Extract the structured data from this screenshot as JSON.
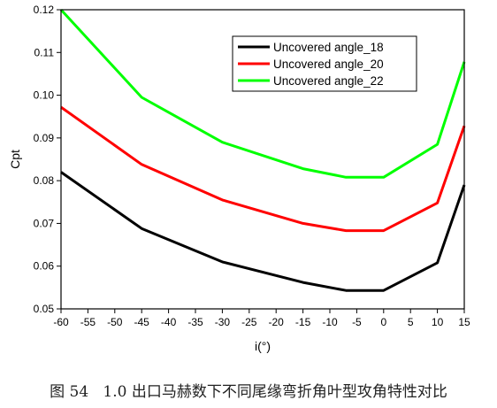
{
  "caption": "图 54   1.0 出口马赫数下不同尾缘弯折角叶型攻角特性对比",
  "chart_data": {
    "type": "line",
    "title": "",
    "xlabel": "i(°)",
    "ylabel": "Cpt",
    "xlim": [
      -60,
      15
    ],
    "ylim": [
      0.05,
      0.12
    ],
    "xticks": [
      -60,
      -55,
      -50,
      -45,
      -40,
      -35,
      -30,
      -25,
      -20,
      -15,
      -10,
      -5,
      0,
      5,
      10,
      15
    ],
    "yticks": [
      "0.05",
      "0.06",
      "0.07",
      "0.08",
      "0.09",
      "0.10",
      "0.11",
      "0.12"
    ],
    "grid": false,
    "legend_position": "top-right",
    "x": [
      -60,
      -45,
      -30,
      -15,
      -7,
      0,
      10,
      15
    ],
    "series": [
      {
        "name": "Uncovered angle_18",
        "color": "#000000",
        "values": [
          0.082,
          0.0688,
          0.061,
          0.0562,
          0.0543,
          0.0543,
          0.0608,
          0.079
        ]
      },
      {
        "name": "Uncovered angle_20",
        "color": "#ff0000",
        "values": [
          0.0972,
          0.0838,
          0.0755,
          0.07,
          0.0683,
          0.0683,
          0.0748,
          0.0928
        ]
      },
      {
        "name": "Uncovered angle_22",
        "color": "#00ff00",
        "values": [
          0.12,
          0.0995,
          0.089,
          0.0828,
          0.0808,
          0.0808,
          0.0885,
          0.1078
        ]
      }
    ]
  }
}
